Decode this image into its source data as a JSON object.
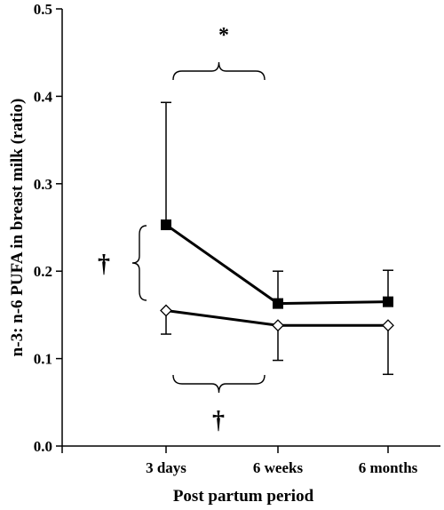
{
  "chart_data": {
    "type": "line",
    "xlabel": "Post partum period",
    "ylabel": "n-3: n-6 PUFA in breast milk (ratio)",
    "categories": [
      "3 days",
      "6 weeks",
      "6 months"
    ],
    "ylim": [
      0.0,
      0.5
    ],
    "yticks": [
      "0.0",
      "0.1",
      "0.2",
      "0.3",
      "0.4",
      "0.5"
    ],
    "yticks_values": [
      0.0,
      0.1,
      0.2,
      0.3,
      0.4,
      0.5
    ],
    "grid": false,
    "series": [
      {
        "marker": "filled-square",
        "values": [
          0.253,
          0.163,
          0.165
        ],
        "error_upper": [
          0.393,
          0.2,
          0.201
        ],
        "color": "#000000"
      },
      {
        "marker": "open-diamond",
        "values": [
          0.155,
          0.138,
          0.138
        ],
        "error_lower": [
          0.128,
          0.098,
          0.082
        ],
        "color": "#000000"
      }
    ],
    "annotations": [
      {
        "text": "*",
        "between": [
          "3 days",
          "6 weeks"
        ],
        "position": "top"
      },
      {
        "text": "†",
        "between": [
          "3 days",
          "6 weeks"
        ],
        "position": "bottom"
      },
      {
        "text": "†",
        "at": "3 days",
        "position": "left"
      }
    ]
  }
}
